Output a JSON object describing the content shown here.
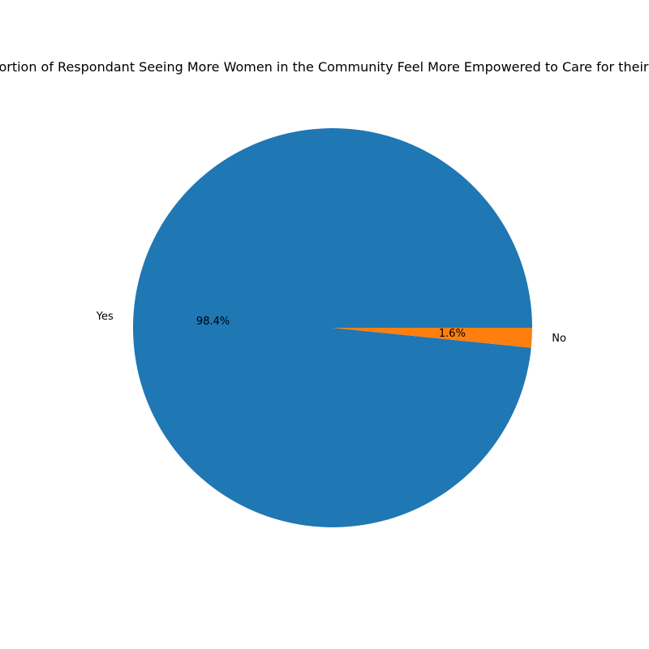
{
  "chart_data": {
    "type": "pie",
    "title": "Proportion of Respondant Seeing More Women in the Community Feel More Empowered to Care for their Health",
    "categories": [
      "Yes",
      "No"
    ],
    "values": [
      98.4,
      1.6
    ],
    "value_labels": [
      "98.4%",
      "1.6%"
    ],
    "colors": [
      "#1f77b4",
      "#ff7f0e"
    ],
    "start_angle": "0 degrees (3 o'clock), counter-clockwise",
    "legend": "none"
  }
}
